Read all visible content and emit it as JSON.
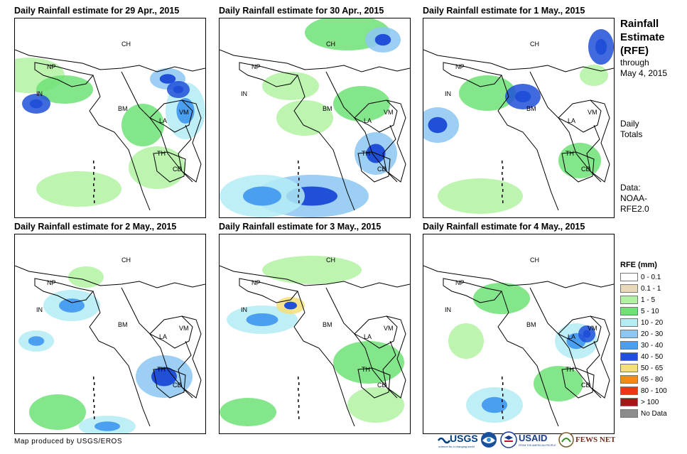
{
  "panels": [
    {
      "title": "Daily Rainfall estimate for 29 Apr., 2015"
    },
    {
      "title": "Daily Rainfall estimate for 30 Apr., 2015"
    },
    {
      "title": "Daily Rainfall estimate for 1 May., 2015"
    },
    {
      "title": "Daily Rainfall estimate for 2 May., 2015"
    },
    {
      "title": "Daily Rainfall estimate for 3 May., 2015"
    },
    {
      "title": "Daily Rainfall estimate for 4 May., 2015"
    }
  ],
  "country_labels": [
    "CH",
    "NP",
    "IN",
    "BM",
    "LA",
    "VM",
    "TH",
    "CB"
  ],
  "side": {
    "title_l1": "Rainfall",
    "title_l2": "Estimate",
    "title_l3": "(RFE)",
    "through_l1": "through",
    "through_l2": "May 4, 2015",
    "daily_l1": "Daily",
    "daily_l2": "Totals",
    "data_l1": "Data:",
    "data_l2": "NOAA-",
    "data_l3": "RFE2.0"
  },
  "legend": {
    "title": "RFE (mm)",
    "items": [
      {
        "label": "0 - 0.1",
        "color": "#ffffff"
      },
      {
        "label": "0.1 - 1",
        "color": "#ead9b8"
      },
      {
        "label": "1 - 5",
        "color": "#b2f2a2"
      },
      {
        "label": "5 - 10",
        "color": "#6fe276"
      },
      {
        "label": "10 - 20",
        "color": "#b4ecf4"
      },
      {
        "label": "20 - 30",
        "color": "#8cc6f2"
      },
      {
        "label": "30 - 40",
        "color": "#4a9ff0"
      },
      {
        "label": "40 - 50",
        "color": "#2050d8"
      },
      {
        "label": "50 - 65",
        "color": "#f5df78"
      },
      {
        "label": "65 - 80",
        "color": "#f08c1c"
      },
      {
        "label": "80 - 100",
        "color": "#e83a12"
      },
      {
        "label": "> 100",
        "color": "#a01818"
      },
      {
        "label": "No Data",
        "color": "#8c8c8c"
      }
    ]
  },
  "credit": "Map produced by USGS/EROS",
  "logos": {
    "usgs": "USGS",
    "usgs_tag": "science for a changing world",
    "noaa": "NOAA",
    "usaid": "USAID",
    "usaid_tag": "FROM THE AMERICAN PEOPLE",
    "fewsnet": "FEWS NET"
  }
}
